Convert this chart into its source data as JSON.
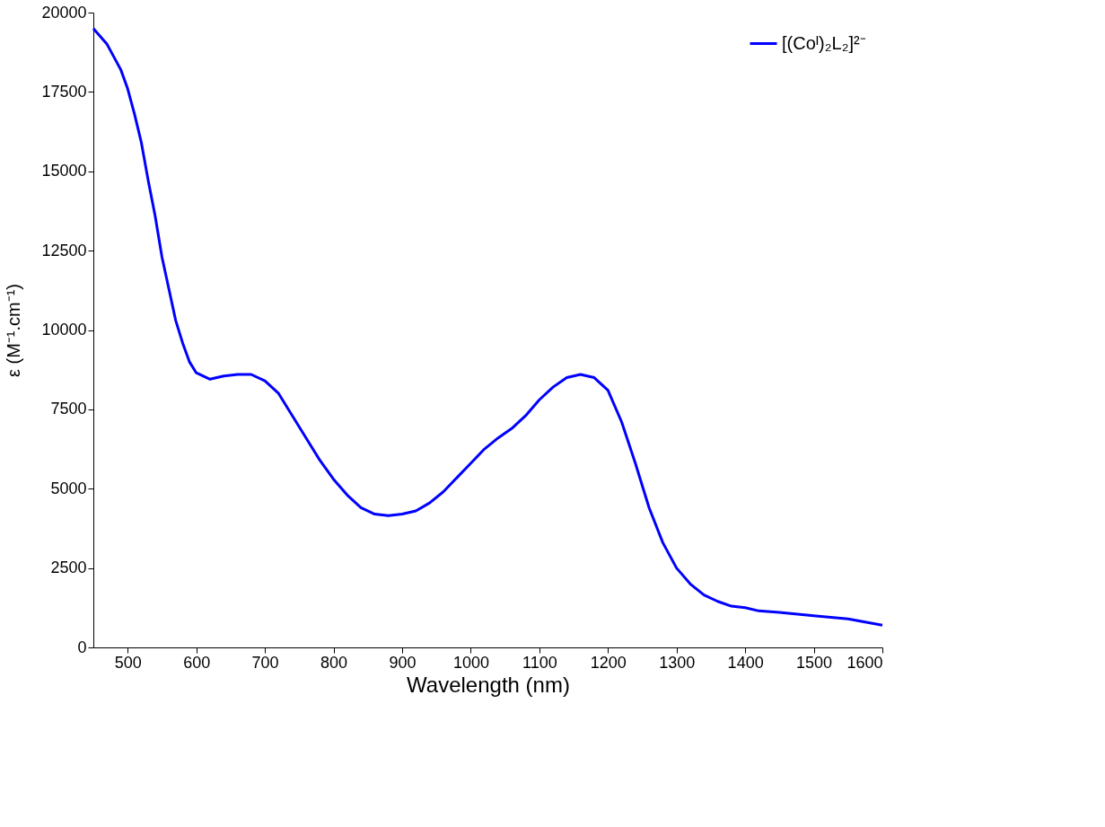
{
  "chart_data": {
    "type": "line",
    "xlabel": "Wavelength (nm)",
    "ylabel": "ε (M⁻¹.cm⁻¹)",
    "x": [
      450,
      470,
      490,
      500,
      510,
      520,
      530,
      540,
      550,
      560,
      570,
      580,
      590,
      600,
      620,
      640,
      660,
      680,
      700,
      720,
      740,
      760,
      780,
      800,
      820,
      840,
      860,
      880,
      900,
      920,
      940,
      960,
      980,
      1000,
      1020,
      1040,
      1060,
      1080,
      1100,
      1120,
      1140,
      1160,
      1180,
      1200,
      1220,
      1240,
      1260,
      1280,
      1300,
      1320,
      1340,
      1360,
      1380,
      1400,
      1420,
      1450,
      1500,
      1550,
      1600
    ],
    "series": [
      {
        "name": "[(Coᴵ)₂L₂]²⁻",
        "color": "#0000ff",
        "values": [
          19500,
          19000,
          18200,
          17600,
          16800,
          15900,
          14700,
          13600,
          12300,
          11300,
          10300,
          9600,
          9000,
          8650,
          8450,
          8550,
          8600,
          8600,
          8400,
          8000,
          7300,
          6600,
          5900,
          5300,
          4800,
          4400,
          4200,
          4150,
          4200,
          4300,
          4550,
          4900,
          5350,
          5800,
          6250,
          6600,
          6900,
          7300,
          7800,
          8200,
          8500,
          8600,
          8500,
          8100,
          7100,
          5800,
          4400,
          3300,
          2500,
          2000,
          1650,
          1450,
          1300,
          1250,
          1150,
          1100,
          1000,
          900,
          700
        ]
      }
    ],
    "xlim": [
      450,
      1600
    ],
    "xticks": [
      500,
      600,
      700,
      800,
      900,
      1000,
      1100,
      1200,
      1300,
      1400,
      1500,
      1600
    ],
    "ylim": [
      0,
      20000
    ],
    "yticks": [
      0,
      2500,
      5000,
      7500,
      10000,
      12500,
      15000,
      17500,
      20000
    ],
    "grid": false,
    "legend": "top right",
    "marker": "none",
    "line_style": "solid"
  }
}
